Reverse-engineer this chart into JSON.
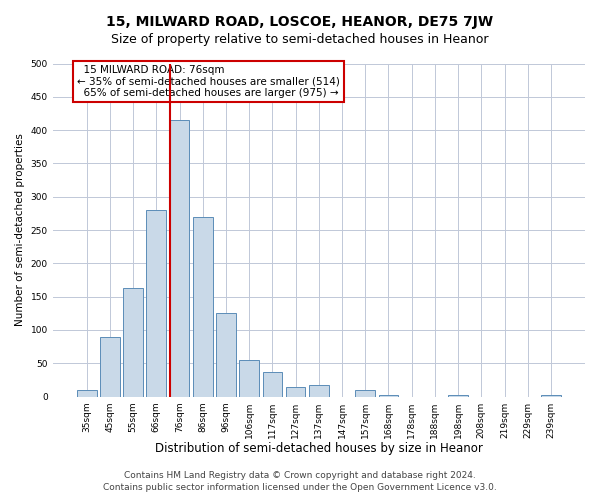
{
  "title": "15, MILWARD ROAD, LOSCOE, HEANOR, DE75 7JW",
  "subtitle": "Size of property relative to semi-detached houses in Heanor",
  "xlabel": "Distribution of semi-detached houses by size in Heanor",
  "ylabel": "Number of semi-detached properties",
  "categories": [
    "35sqm",
    "45sqm",
    "55sqm",
    "66sqm",
    "76sqm",
    "86sqm",
    "96sqm",
    "106sqm",
    "117sqm",
    "127sqm",
    "137sqm",
    "147sqm",
    "157sqm",
    "168sqm",
    "178sqm",
    "188sqm",
    "198sqm",
    "208sqm",
    "219sqm",
    "229sqm",
    "239sqm"
  ],
  "values": [
    10,
    90,
    163,
    280,
    415,
    270,
    125,
    55,
    37,
    15,
    17,
    0,
    10,
    3,
    0,
    0,
    3,
    0,
    0,
    0,
    3
  ],
  "bar_color": "#c9d9e8",
  "bar_edge_color": "#5b8db8",
  "highlight_index": 4,
  "highlight_line_color": "#cc0000",
  "property_label": "15 MILWARD ROAD: 76sqm",
  "pct_smaller": "35% of semi-detached houses are smaller (514)",
  "pct_larger": "65% of semi-detached houses are larger (975)",
  "annotation_box_color": "#cc0000",
  "ylim": [
    0,
    500
  ],
  "yticks": [
    0,
    50,
    100,
    150,
    200,
    250,
    300,
    350,
    400,
    450,
    500
  ],
  "footer_line1": "Contains HM Land Registry data © Crown copyright and database right 2024.",
  "footer_line2": "Contains public sector information licensed under the Open Government Licence v3.0.",
  "background_color": "#ffffff",
  "grid_color": "#c0c8d8",
  "title_fontsize": 10,
  "subtitle_fontsize": 9,
  "xlabel_fontsize": 8.5,
  "ylabel_fontsize": 7.5,
  "tick_fontsize": 6.5,
  "annot_fontsize": 7.5,
  "footer_fontsize": 6.5
}
